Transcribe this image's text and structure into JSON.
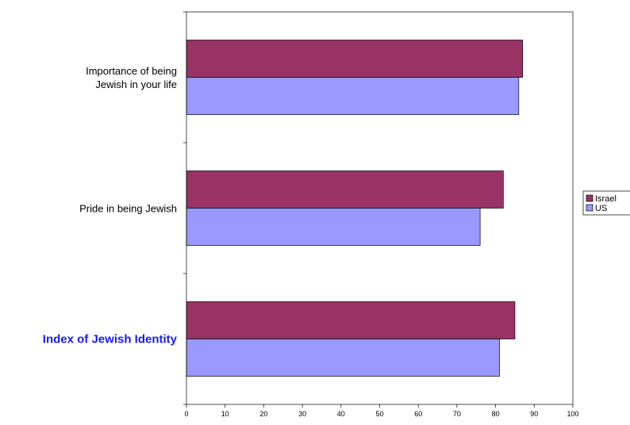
{
  "chart_data": {
    "type": "bar",
    "orientation": "horizontal",
    "categories": [
      "Importance of being Jewish in your life",
      "Pride in being Jewish",
      "Index of Jewish Identity"
    ],
    "category_lines": [
      [
        "Importance of being",
        "Jewish in your life"
      ],
      [
        "Pride in being Jewish"
      ],
      [
        "Index of Jewish Identity"
      ]
    ],
    "highlighted_category": "Index of Jewish Identity",
    "highlight_color": "#1a1aff",
    "series": [
      {
        "name": "Israel",
        "color": "#993366",
        "values": [
          87,
          82,
          85
        ]
      },
      {
        "name": "US",
        "color": "#9999ff",
        "values": [
          86,
          76,
          81
        ]
      }
    ],
    "xlim": [
      0,
      100
    ],
    "xticks": [
      0,
      10,
      20,
      30,
      40,
      50,
      60,
      70,
      80,
      90,
      100
    ],
    "xlabel": "",
    "ylabel": "",
    "title": "",
    "grid": false,
    "legend": {
      "placement": "right",
      "entries": [
        "Israel",
        "US"
      ]
    }
  }
}
